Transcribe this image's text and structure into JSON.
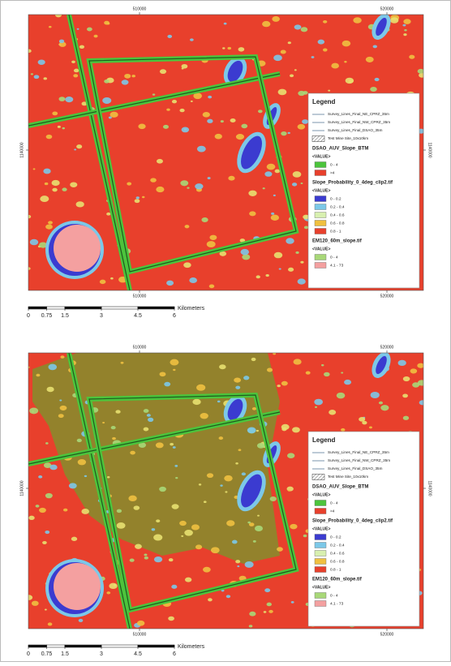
{
  "panels": [
    {
      "xticks": [
        510000,
        520000
      ],
      "yticks": [
        1140000
      ],
      "legend": {
        "title": "Legend",
        "lines": [
          "Survey_Lines_Final_NE_CPRZ_35m",
          "Survey_Lines_Final_NW_CPRZ_35m",
          "Survey_Lines_Final_DSAO_35m"
        ],
        "hatch": "Test Mine Site_10x10km",
        "layers": [
          {
            "name": "DSAO_AUV_Slope_BTM",
            "field": "<VALUE>",
            "classes": [
              {
                "label": "0 - 4",
                "color": "#4cc43c"
              },
              {
                "label": ">4",
                "color": "#e8402c"
              }
            ]
          },
          {
            "name": "Slope_Probability_0_4deg_clip2.tif",
            "field": "<VALUE>",
            "classes": [
              {
                "label": "0 - 0.2",
                "color": "#3b3bd0"
              },
              {
                "label": "0.2 - 0.4",
                "color": "#7cc8e8"
              },
              {
                "label": "0.4 - 0.6",
                "color": "#d8f0b0"
              },
              {
                "label": "0.6 - 0.8",
                "color": "#f0c040"
              },
              {
                "label": "0.8 - 1",
                "color": "#e8402c"
              }
            ]
          },
          {
            "name": "EM120_60m_slope.tif",
            "field": "<VALUE>",
            "classes": [
              {
                "label": "0 - 4",
                "color": "#a8d878"
              },
              {
                "label": "4.1 - 73",
                "color": "#f4a0a0"
              }
            ]
          }
        ]
      },
      "scale": {
        "ticks": [
          0,
          0.75,
          1.5,
          3,
          4.5,
          6
        ],
        "unit": "Kilometers"
      }
    },
    {
      "xticks": [
        510000,
        520000
      ],
      "yticks": [
        1140000
      ],
      "legend": {
        "title": "Legend",
        "lines": [
          "Survey_Lines_Final_NE_CPRZ_35m",
          "Survey_Lines_Final_NW_CPRZ_35m",
          "Survey_Lines_Final_DSAO_35m"
        ],
        "hatch": "Test Mine Site_10x10km",
        "layers": [
          {
            "name": "DSAO_AUV_Slope_BTM",
            "field": "<VALUE>",
            "classes": [
              {
                "label": "0 - 4",
                "color": "#4cc43c"
              },
              {
                "label": ">4",
                "color": "#e8402c"
              }
            ]
          },
          {
            "name": "Slope_Probability_0_4deg_clip2.tif",
            "field": "<VALUE>",
            "classes": [
              {
                "label": "0 - 0.2",
                "color": "#3b3bd0"
              },
              {
                "label": "0.2 - 0.4",
                "color": "#7cc8e8"
              },
              {
                "label": "0.4 - 0.6",
                "color": "#d8f0b0"
              },
              {
                "label": "0.6 - 0.8",
                "color": "#f0c040"
              },
              {
                "label": "0.8 - 1",
                "color": "#e8402c"
              }
            ]
          },
          {
            "name": "EM120_60m_slope.tif",
            "field": "<VALUE>",
            "classes": [
              {
                "label": "0 - 4",
                "color": "#a8d878"
              },
              {
                "label": "4.1 - 73",
                "color": "#f4a0a0"
              }
            ]
          }
        ]
      },
      "scale": {
        "ticks": [
          0,
          0.75,
          1.5,
          3,
          4.5,
          6
        ],
        "unit": "Kilometers"
      }
    }
  ]
}
